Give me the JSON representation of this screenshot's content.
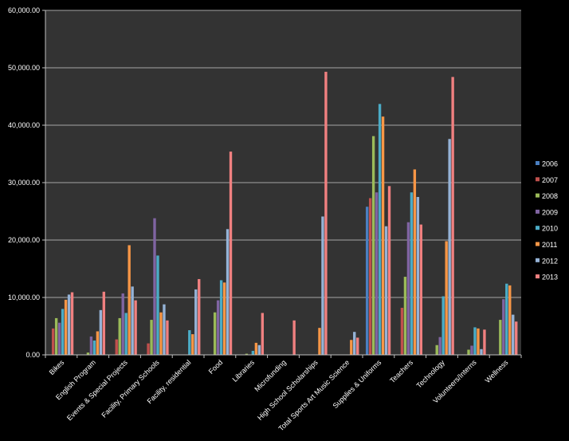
{
  "chart_data": {
    "type": "bar",
    "ylim": [
      0,
      60000
    ],
    "yticks": [
      "0.00",
      "10,000.00",
      "20,000.00",
      "30,000.00",
      "40,000.00",
      "50,000.00",
      "60,000.00"
    ],
    "ytick_values": [
      0,
      10000,
      20000,
      30000,
      40000,
      50000,
      60000
    ],
    "grid": true,
    "legend_position": "right",
    "categories": [
      "Bikes",
      "English Program",
      "Events & Special Projects",
      "Facility, Primary Schools",
      "Facility, residential",
      "Food",
      "Libraries",
      "Microfunding",
      "High School Scholarships",
      "Total Sports Art Music Science",
      "Supplies & Uniforms",
      "Teachers",
      "Technology",
      "Volunteers/Interns",
      "Wellness"
    ],
    "series": [
      {
        "name": "2006",
        "color": "#4a7fc1",
        "values": [
          0,
          0,
          0,
          0,
          0,
          0,
          0,
          0,
          0,
          0,
          25800,
          0,
          0,
          0,
          0
        ]
      },
      {
        "name": "2007",
        "color": "#c0504d",
        "values": [
          4600,
          0,
          2700,
          2000,
          0,
          0,
          0,
          0,
          0,
          0,
          27300,
          8200,
          0,
          0,
          0
        ]
      },
      {
        "name": "2008",
        "color": "#9bbb59",
        "values": [
          6400,
          400,
          6400,
          6100,
          0,
          7400,
          200,
          0,
          0,
          0,
          38100,
          13600,
          1700,
          900,
          6100
        ]
      },
      {
        "name": "2009",
        "color": "#8064a2",
        "values": [
          5600,
          3200,
          10700,
          23800,
          0,
          9500,
          0,
          0,
          0,
          0,
          28300,
          23100,
          3100,
          1600,
          9700
        ]
      },
      {
        "name": "2010",
        "color": "#4bacc6",
        "values": [
          8000,
          2500,
          7300,
          17300,
          4300,
          13000,
          700,
          0,
          0,
          0,
          43700,
          28300,
          10200,
          4800,
          12400
        ]
      },
      {
        "name": "2011",
        "color": "#f79646",
        "values": [
          9600,
          4100,
          19100,
          7400,
          3600,
          12600,
          2100,
          0,
          4700,
          2600,
          41500,
          32300,
          19800,
          4600,
          12100
        ]
      },
      {
        "name": "2012",
        "color": "#95b3d7",
        "values": [
          10500,
          7800,
          11900,
          8800,
          11400,
          21900,
          1700,
          0,
          24100,
          4000,
          22400,
          27500,
          37600,
          1000,
          7000
        ]
      },
      {
        "name": "2013",
        "color": "#f08080",
        "values": [
          10900,
          11000,
          9500,
          6000,
          13200,
          35400,
          7300,
          6000,
          49300,
          3000,
          29400,
          22700,
          48400,
          4400,
          5800
        ]
      }
    ]
  }
}
